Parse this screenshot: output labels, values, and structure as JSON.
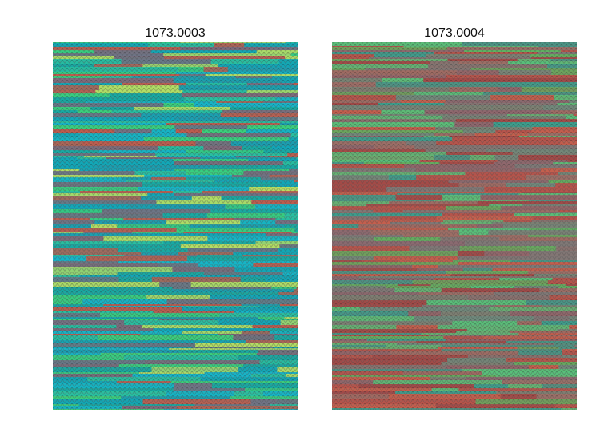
{
  "images": [
    {
      "label": "1073.0003"
    },
    {
      "label": "1073.0004"
    }
  ]
}
